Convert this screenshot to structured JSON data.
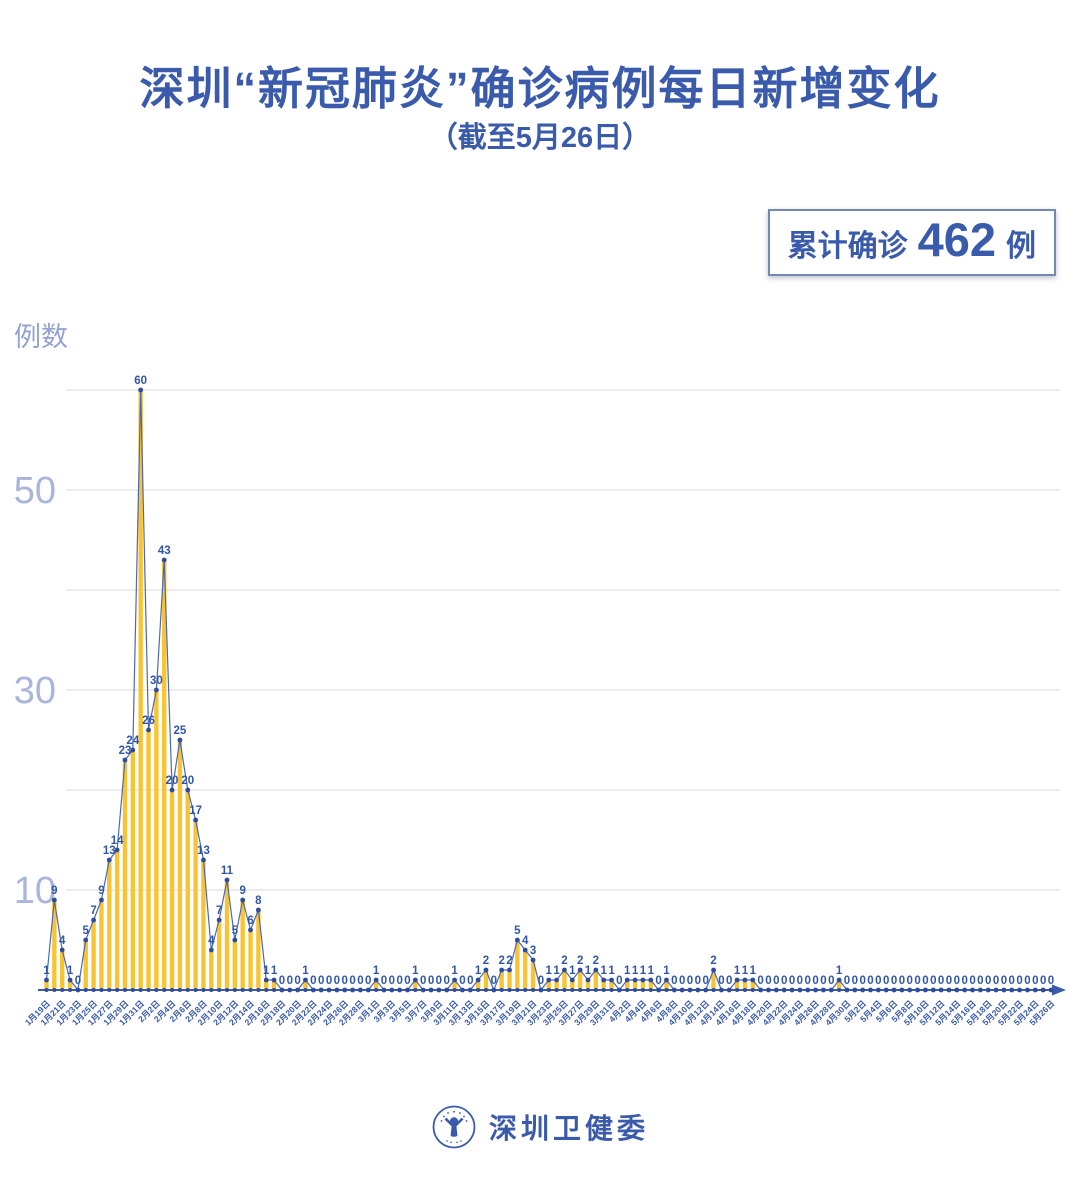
{
  "title": "深圳“新冠肺炎”确诊病例每日新增变化",
  "subtitle": "（截至5月26日）",
  "badge": {
    "label": "累计确诊",
    "value": "462",
    "unit": "例"
  },
  "footer": {
    "org": "深圳卫健委",
    "logo": "shenzhen-health-commission-seal"
  },
  "colors": {
    "primary_blue": "#3a5aab",
    "axis_numeral": "#a9b5da",
    "ylabel": "#93a3d1",
    "gridline": "#dadada",
    "bar_yellow": "#f9c433",
    "line_blue": "#4a68b4",
    "dot_blue": "#2e4b9e",
    "value_label": "#3156a8"
  },
  "chart_data": {
    "type": "bar",
    "line_overlay": true,
    "title": "深圳“新冠肺炎”确诊病例每日新增变化",
    "subtitle": "（截至5月26日）",
    "ylabel": "例数",
    "ylim": [
      0,
      60
    ],
    "gridlines": [
      10,
      20,
      30,
      40,
      50,
      60
    ],
    "ytick_labels": [
      10,
      30,
      50
    ],
    "xtick_every": 2,
    "legend": "none",
    "total": 462,
    "categories": [
      "1月19日",
      "1月20日",
      "1月21日",
      "1月22日",
      "1月23日",
      "1月24日",
      "1月25日",
      "1月26日",
      "1月27日",
      "1月28日",
      "1月29日",
      "1月30日",
      "1月31日",
      "2月1日",
      "2月2日",
      "2月3日",
      "2月4日",
      "2月5日",
      "2月6日",
      "2月7日",
      "2月8日",
      "2月9日",
      "2月10日",
      "2月11日",
      "2月12日",
      "2月13日",
      "2月14日",
      "2月15日",
      "2月16日",
      "2月17日",
      "2月18日",
      "2月19日",
      "2月20日",
      "2月21日",
      "2月22日",
      "2月23日",
      "2月24日",
      "2月25日",
      "2月26日",
      "2月27日",
      "2月28日",
      "2月29日",
      "3月1日",
      "3月2日",
      "3月3日",
      "3月4日",
      "3月5日",
      "3月6日",
      "3月7日",
      "3月8日",
      "3月9日",
      "3月10日",
      "3月11日",
      "3月12日",
      "3月13日",
      "3月14日",
      "3月15日",
      "3月16日",
      "3月17日",
      "3月18日",
      "3月19日",
      "3月20日",
      "3月21日",
      "3月22日",
      "3月23日",
      "3月24日",
      "3月25日",
      "3月26日",
      "3月27日",
      "3月28日",
      "3月29日",
      "3月30日",
      "3月31日",
      "4月1日",
      "4月2日",
      "4月3日",
      "4月4日",
      "4月5日",
      "4月6日",
      "4月7日",
      "4月8日",
      "4月9日",
      "4月10日",
      "4月11日",
      "4月12日",
      "4月13日",
      "4月14日",
      "4月15日",
      "4月16日",
      "4月17日",
      "4月18日",
      "4月19日",
      "4月20日",
      "4月21日",
      "4月22日",
      "4月23日",
      "4月24日",
      "4月25日",
      "4月26日",
      "4月27日",
      "4月28日",
      "4月29日",
      "4月30日",
      "5月1日",
      "5月2日",
      "5月3日",
      "5月4日",
      "5月5日",
      "5月6日",
      "5月7日",
      "5月8日",
      "5月9日",
      "5月10日",
      "5月11日",
      "5月12日",
      "5月13日",
      "5月14日",
      "5月15日",
      "5月16日",
      "5月17日",
      "5月18日",
      "5月19日",
      "5月20日",
      "5月21日",
      "5月22日",
      "5月23日",
      "5月24日",
      "5月25日",
      "5月26日"
    ],
    "values": [
      1,
      9,
      4,
      1,
      0,
      5,
      7,
      9,
      13,
      14,
      23,
      24,
      60,
      26,
      30,
      43,
      20,
      25,
      20,
      17,
      13,
      4,
      7,
      11,
      5,
      9,
      6,
      8,
      1,
      1,
      0,
      0,
      0,
      1,
      0,
      0,
      0,
      0,
      0,
      0,
      0,
      0,
      1,
      0,
      0,
      0,
      0,
      1,
      0,
      0,
      0,
      0,
      1,
      0,
      0,
      1,
      2,
      0,
      2,
      2,
      5,
      4,
      3,
      0,
      1,
      1,
      2,
      1,
      2,
      1,
      2,
      1,
      1,
      0,
      1,
      1,
      1,
      1,
      0,
      1,
      0,
      0,
      0,
      0,
      0,
      2,
      0,
      0,
      1,
      1,
      1,
      0,
      0,
      0,
      0,
      0,
      0,
      0,
      0,
      0,
      0,
      1,
      0,
      0,
      0,
      0,
      0,
      0,
      0,
      0,
      0,
      0,
      0,
      0,
      0,
      0,
      0,
      0,
      0,
      0,
      0,
      0,
      0,
      0,
      0,
      0,
      0,
      0,
      0
    ]
  }
}
